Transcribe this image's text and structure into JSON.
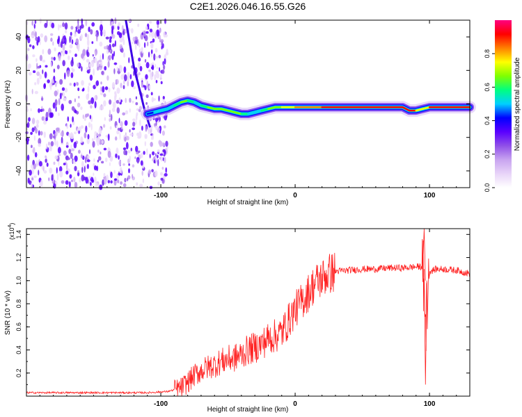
{
  "title": "C2E1.2026.046.16.55.G26",
  "chart_data": [
    {
      "type": "heatmap",
      "name": "spectrogram",
      "xlabel": "Height of straight line (km)",
      "ylabel": "Frequency (Hz)",
      "xlim": [
        -200,
        130
      ],
      "ylim": [
        -50,
        50
      ],
      "xticks": [
        -100,
        0,
        100
      ],
      "yticks": [
        -40,
        -20,
        0,
        20,
        40
      ],
      "colorbar": {
        "label": "Normalized spectral amplitude",
        "range": [
          0,
          1
        ],
        "ticks": [
          0.0,
          0.2,
          0.4,
          0.6,
          0.8
        ],
        "tick_labels": [
          "0.0",
          "0.2",
          "0.4",
          "0.6",
          "0.8"
        ],
        "colormap": [
          "#ffffff",
          "#e8d4f8",
          "#c8a4f0",
          "#9050e8",
          "#5a00ff",
          "#0000ff",
          "#00d0ff",
          "#00ff80",
          "#80ff00",
          "#ffff00",
          "#ff8000",
          "#ff0000",
          "#ff0080"
        ]
      },
      "noise_region_x": [
        -200,
        -95
      ],
      "ridge": {
        "x": [
          -110,
          -105,
          -100,
          -95,
          -90,
          -85,
          -80,
          -75,
          -70,
          -65,
          -60,
          -55,
          -50,
          -45,
          -40,
          -35,
          -30,
          -25,
          -20,
          -15,
          -10,
          -5,
          0,
          10,
          20,
          30,
          40,
          50,
          60,
          70,
          80,
          85,
          90,
          95,
          100,
          105,
          110,
          120,
          130
        ],
        "freq": [
          -6,
          -5,
          -4,
          -3,
          -1,
          1,
          2,
          1,
          -1,
          -2,
          -3,
          -3,
          -4,
          -5,
          -6,
          -6,
          -5,
          -4,
          -3,
          -2,
          -2,
          -2,
          -2,
          -2,
          -2,
          -2,
          -2,
          -2,
          -2,
          -2,
          -2,
          -4,
          -4,
          -3,
          -2,
          -2,
          -2,
          -2,
          -2
        ],
        "amplitude": [
          0.35,
          0.45,
          0.5,
          0.55,
          0.5,
          0.65,
          0.6,
          0.5,
          0.55,
          0.6,
          0.7,
          0.6,
          0.65,
          0.65,
          0.6,
          0.55,
          0.5,
          0.55,
          0.6,
          0.65,
          0.7,
          0.75,
          0.8,
          0.8,
          0.85,
          0.9,
          0.92,
          0.92,
          0.92,
          0.93,
          0.92,
          0.95,
          0.9,
          0.6,
          0.85,
          0.9,
          0.9,
          0.9,
          0.85
        ]
      }
    },
    {
      "type": "line",
      "name": "snr",
      "xlabel": "Height of straight line (km)",
      "ylabel": "SNR (10 * v/v)",
      "y_multiplier": "(x10",
      "y_exponent": "4",
      "xlim": [
        -200,
        130
      ],
      "ylim": [
        0,
        1.45
      ],
      "xticks": [
        -100,
        0,
        100
      ],
      "yticks": [
        0.2,
        0.4,
        0.6,
        0.8,
        1.0,
        1.2,
        1.4
      ],
      "ytick_labels": [
        "0.2",
        "0.4",
        "0.6",
        "0.8",
        "1.0",
        "1.2",
        "1.4"
      ],
      "color": "#ff2020",
      "series": {
        "name": "SNR",
        "x": [
          -200,
          -170,
          -140,
          -110,
          -95,
          -85,
          -80,
          -75,
          -70,
          -65,
          -60,
          -55,
          -50,
          -45,
          -40,
          -35,
          -30,
          -25,
          -20,
          -15,
          -10,
          -5,
          0,
          5,
          10,
          15,
          20,
          25,
          30,
          40,
          50,
          60,
          70,
          80,
          90,
          95,
          97,
          100,
          105,
          110,
          120,
          130
        ],
        "y": [
          0.03,
          0.03,
          0.03,
          0.03,
          0.04,
          0.07,
          0.12,
          0.18,
          0.22,
          0.25,
          0.27,
          0.3,
          0.32,
          0.33,
          0.36,
          0.4,
          0.42,
          0.45,
          0.5,
          0.52,
          0.55,
          0.65,
          0.75,
          0.82,
          0.9,
          0.98,
          1.02,
          1.06,
          1.08,
          1.09,
          1.1,
          1.1,
          1.11,
          1.11,
          1.12,
          1.12,
          0.6,
          1.08,
          1.1,
          1.1,
          1.09,
          1.06
        ]
      },
      "features": [
        {
          "label": "peak",
          "x": 96,
          "y": 1.45
        },
        {
          "label": "dip",
          "x": 97,
          "y": 0.1
        }
      ]
    }
  ]
}
